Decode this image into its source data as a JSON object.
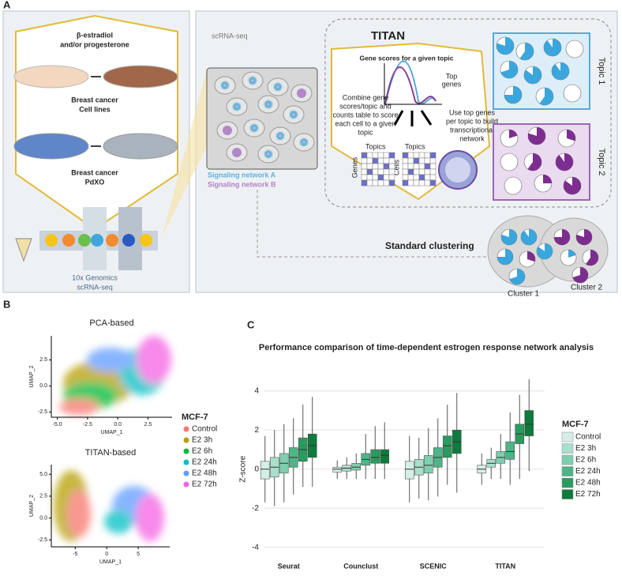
{
  "panel_labels": [
    "A",
    "B",
    "C"
  ],
  "panel_a": {
    "hormone": [
      "β-estradiol",
      "and/or progesterone"
    ],
    "cell_lines": [
      "Breast cancer",
      "Cell lines"
    ],
    "pdxo": [
      "Breast cancer",
      "PdXO"
    ],
    "genomics": [
      "10x Genomics",
      "scRNA-seq"
    ],
    "scrna": "scRNA-seq",
    "network_a": "Signaling  network A",
    "network_b": "Signaling network B",
    "titan": "TITAN",
    "gene_scores": "Gene scores for a given topic",
    "top_genes": [
      "Top",
      "genes"
    ],
    "combine": [
      "Combine gene",
      "scores/topic and",
      "counts table to score",
      "each cell to a given",
      "topic"
    ],
    "use_top": [
      "Use top genes",
      "per topic to build",
      "transcriptional",
      "network"
    ],
    "topics1": "Topics",
    "genes": "Genes",
    "topics2": "Topics",
    "cells": "Cells",
    "topic1": "Topic 1",
    "topic2": "Topic 2",
    "standard": "Standard clustering",
    "cluster1": "Cluster 1",
    "cluster2": "Cluster 2"
  },
  "panel_b_legend": {
    "title": "MCF-7",
    "series": [
      {
        "name": "Control",
        "color": "#f8766d"
      },
      {
        "name": "E2 3h",
        "color": "#b79f00"
      },
      {
        "name": "E2 6h",
        "color": "#00ba38"
      },
      {
        "name": "E2 24h",
        "color": "#00bfc4"
      },
      {
        "name": "E2 48h",
        "color": "#619cff"
      },
      {
        "name": "E2 72h",
        "color": "#f564e3"
      }
    ]
  },
  "chart_data": [
    {
      "type": "scatter",
      "title": "PCA-based",
      "xlabel": "UMAP_1",
      "ylabel": "UMAP_2",
      "xlim": [
        -5.5,
        4.5
      ],
      "ylim": [
        -3,
        4.8
      ],
      "xticks": [
        {
          "value": -5,
          "label": "-5.0"
        },
        -2.5,
        {
          "value": 0,
          "label": "0.0"
        },
        2.5
      ],
      "yticks": [
        2.5,
        {
          "value": 0,
          "label": "0.0"
        },
        -2.5
      ]
    },
    {
      "type": "scatter",
      "title": "TITAN-based",
      "xlabel": "UMAP_1",
      "ylabel": "UMAP_2",
      "xlim": [
        -8.8,
        10
      ],
      "ylim": [
        -3.3,
        6.1
      ],
      "xticks": [
        -5,
        0,
        5
      ],
      "yticks": [
        {
          "value": 5,
          "label": "5.0"
        },
        2.5,
        {
          "value": 0,
          "label": "0.0"
        },
        -2.5
      ]
    },
    {
      "type": "box",
      "title": "Performance comparison of time-dependent estrogen response network analysis",
      "ylabel": "Z-score",
      "legend_title": "MCF-7",
      "categories": [
        "Seurat",
        "Counclust",
        "SCENIC",
        "TITAN"
      ],
      "ylim": [
        -4.5,
        5
      ],
      "yticks": [
        -4,
        -2,
        0,
        2,
        4
      ],
      "grid": true,
      "series": [
        {
          "name": "Control",
          "color": "#d4efe8",
          "median": [
            0,
            0,
            0,
            0
          ],
          "q1": [
            -0.5,
            -0.15,
            -0.5,
            -0.2
          ],
          "q3": [
            0.4,
            0.1,
            0.4,
            0.2
          ],
          "low": [
            -1.7,
            -0.5,
            -1.7,
            -0.8
          ],
          "high": [
            1.7,
            0.45,
            1.7,
            0.8
          ]
        },
        {
          "name": "E2 3h",
          "color": "#a9dfcc",
          "median": [
            0.1,
            0.05,
            0.1,
            0.3
          ],
          "q1": [
            -0.4,
            -0.1,
            -0.3,
            0.1
          ],
          "q3": [
            0.6,
            0.2,
            0.5,
            0.5
          ],
          "low": [
            -1.9,
            -0.5,
            -1.5,
            -0.5
          ],
          "high": [
            2,
            0.6,
            1.6,
            1.1
          ]
        },
        {
          "name": "E2 6h",
          "color": "#7ecfb0",
          "median": [
            0.3,
            0.1,
            0.2,
            0.6
          ],
          "q1": [
            -0.2,
            -0.05,
            -0.2,
            0.3
          ],
          "q3": [
            0.8,
            0.3,
            0.7,
            0.9
          ],
          "low": [
            -1.7,
            -0.5,
            -1.6,
            -0.5
          ],
          "high": [
            2.3,
            0.8,
            2.1,
            1.8
          ]
        },
        {
          "name": "E2 24h",
          "color": "#4db587",
          "median": [
            0.6,
            0.5,
            0.6,
            0.9
          ],
          "q1": [
            0.1,
            0.2,
            0.1,
            0.5
          ],
          "q3": [
            1.1,
            0.8,
            1.1,
            1.4
          ],
          "low": [
            -1.3,
            -0.5,
            -1.4,
            -0.8
          ],
          "high": [
            2.6,
            1.8,
            2.6,
            2.9
          ]
        },
        {
          "name": "E2 48h",
          "color": "#2a9a5e",
          "median": [
            1,
            0.6,
            1.2,
            1.8
          ],
          "q1": [
            0.4,
            0.3,
            0.6,
            1.3
          ],
          "q3": [
            1.6,
            1,
            1.7,
            2.3
          ],
          "low": [
            -0.9,
            -0.5,
            -0.8,
            -0.5
          ],
          "high": [
            3.3,
            2.2,
            3.3,
            3.8
          ]
        },
        {
          "name": "E2 72h",
          "color": "#0e7a3c",
          "median": [
            1.2,
            0.7,
            1.4,
            2.3
          ],
          "q1": [
            0.6,
            0.3,
            0.8,
            1.7
          ],
          "q3": [
            1.8,
            1,
            2,
            3
          ],
          "low": [
            -0.9,
            -0.5,
            -1.2,
            -0.1
          ],
          "high": [
            3.7,
            2.4,
            3.9,
            4.6
          ]
        }
      ]
    }
  ]
}
